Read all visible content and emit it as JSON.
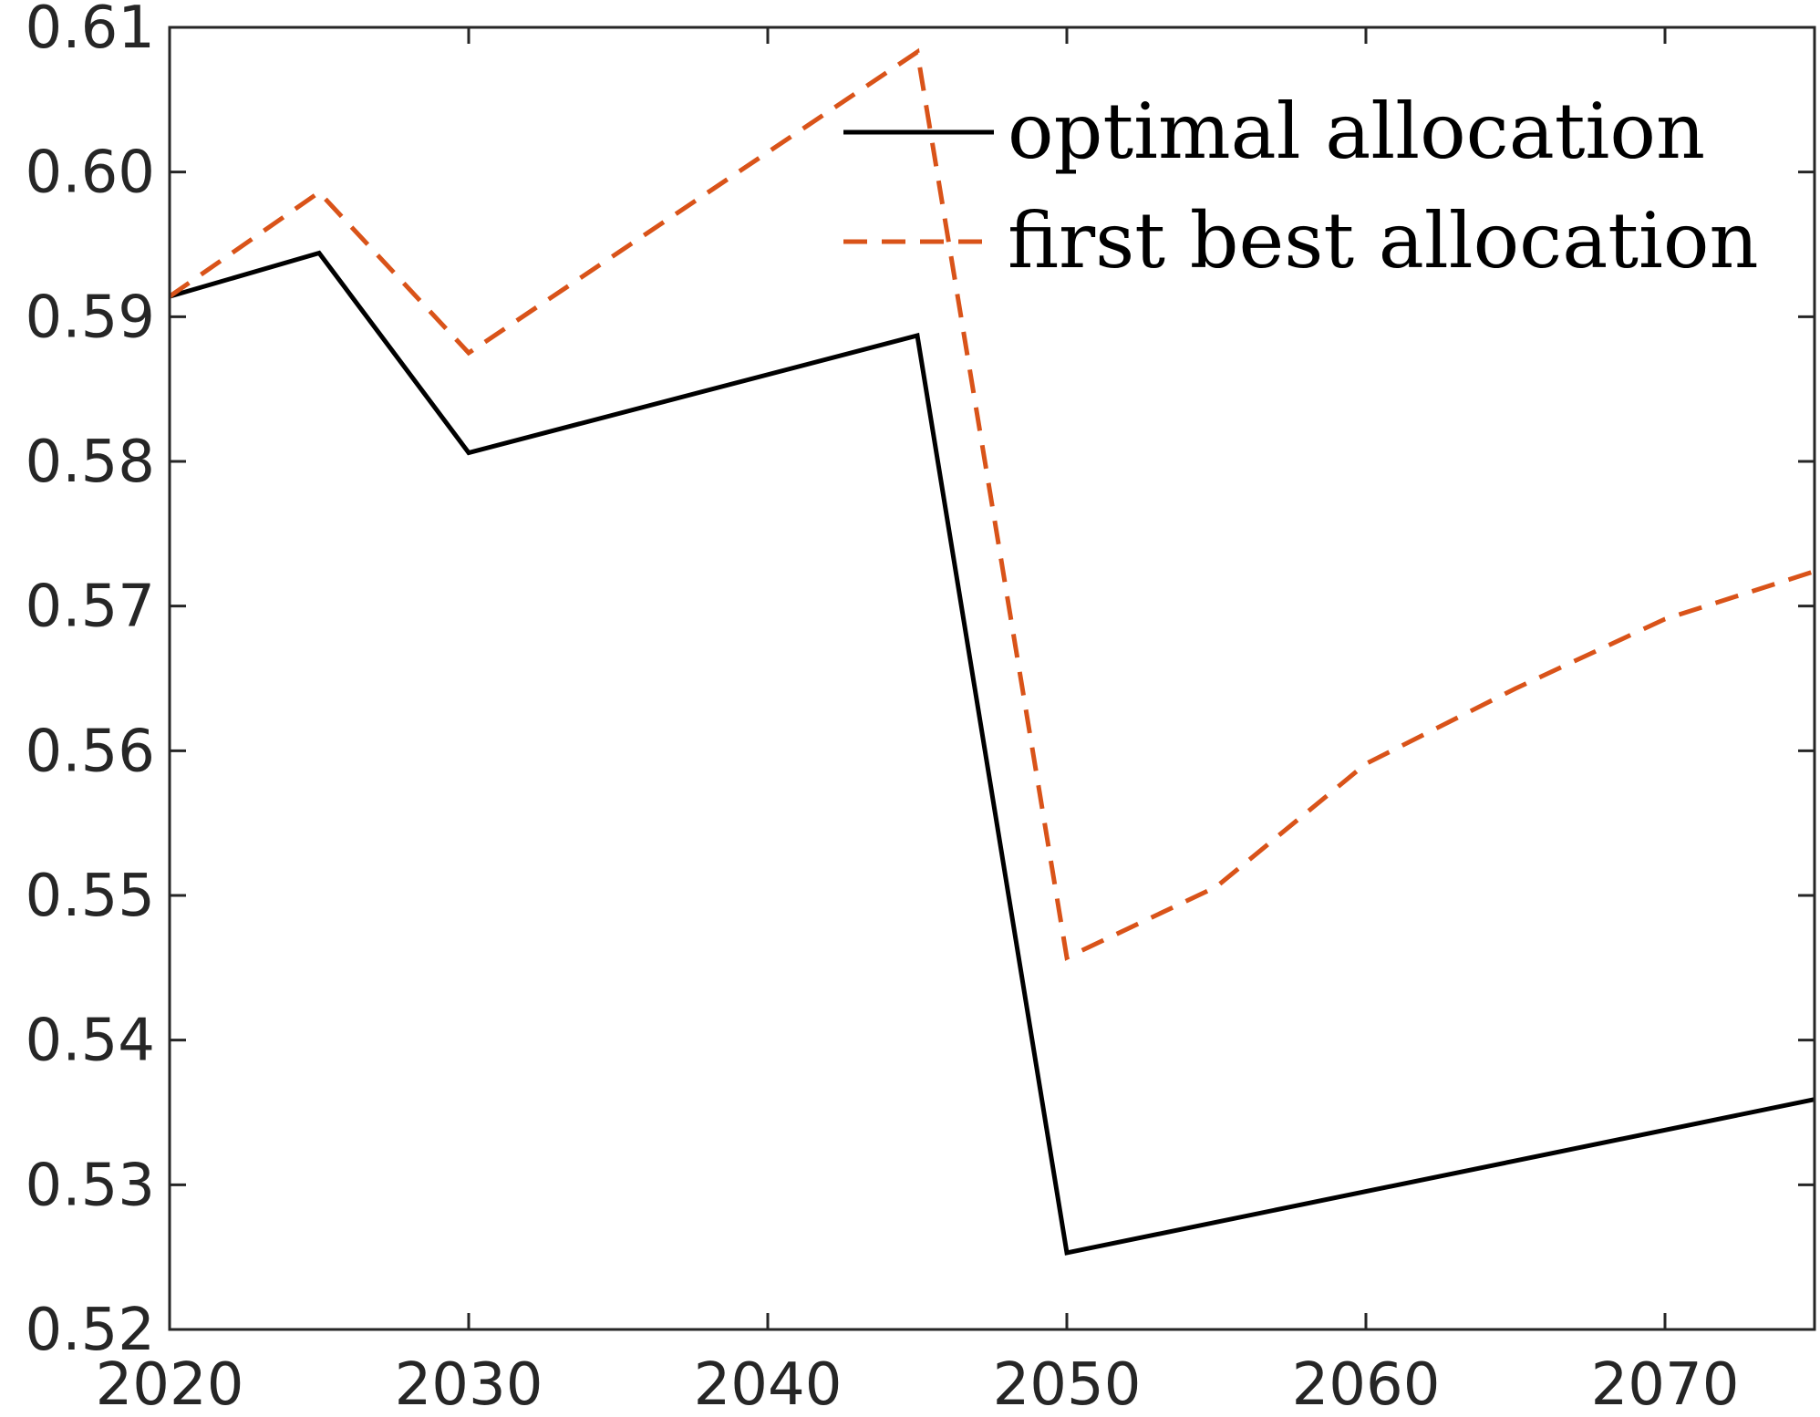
{
  "chart_data": {
    "type": "line",
    "title": "",
    "xlabel": "",
    "ylabel": "",
    "xlim": [
      2020,
      2075
    ],
    "ylim": [
      0.52,
      0.61
    ],
    "xticks": [
      2020,
      2030,
      2040,
      2050,
      2060,
      2070
    ],
    "xtick_labels": [
      "2020",
      "2030",
      "2040",
      "2050",
      "2060",
      "2070"
    ],
    "yticks": [
      0.52,
      0.53,
      0.54,
      0.55,
      0.56,
      0.57,
      0.58,
      0.59,
      0.6,
      0.61
    ],
    "ytick_labels": [
      "0.52",
      "0.53",
      "0.54",
      "0.55",
      "0.56",
      "0.57",
      "0.58",
      "0.59",
      "0.60",
      "0.61"
    ],
    "grid": false,
    "legend_position": "top-right",
    "series": [
      {
        "name": "optimal allocation",
        "color": "#000000",
        "style": "solid",
        "points": [
          [
            2020,
            0.5914
          ],
          [
            2025,
            0.5944
          ],
          [
            2030,
            0.5806
          ],
          [
            2045,
            0.5887
          ],
          [
            2050,
            0.5253
          ],
          [
            2075,
            0.5359
          ]
        ]
      },
      {
        "name": "first best allocation",
        "color": "#D95319",
        "style": "dashed",
        "points": [
          [
            2020,
            0.5914
          ],
          [
            2025,
            0.5986
          ],
          [
            2030,
            0.5875
          ],
          [
            2045,
            0.6083
          ],
          [
            2050,
            0.5457
          ],
          [
            2055,
            0.5506
          ],
          [
            2060,
            0.5591
          ],
          [
            2065,
            0.5643
          ],
          [
            2070,
            0.5691
          ],
          [
            2075,
            0.5724
          ]
        ]
      }
    ]
  }
}
